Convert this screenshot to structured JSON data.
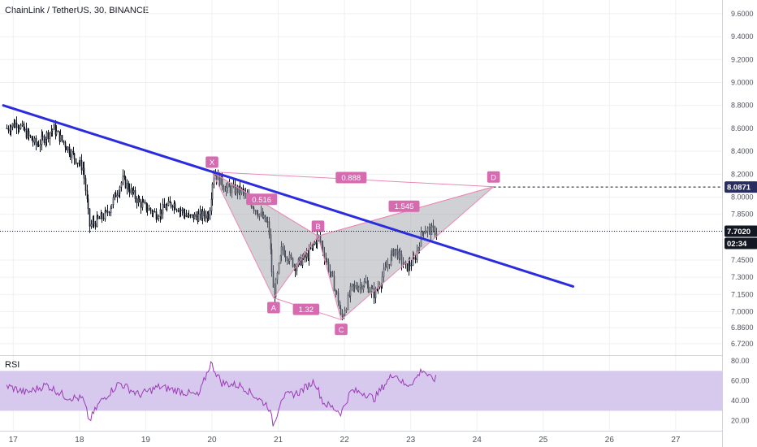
{
  "header": {
    "title": "ChainLink / TetherUS, 30, BINANCE"
  },
  "colors": {
    "candle": "#131722",
    "trendline": "#2b2be0",
    "pattern_fill": "#9598a1",
    "pattern_line": "#e98ab6",
    "pattern_label": "#d66bb0",
    "rsi_band": "#d7c9ee",
    "rsi_line": "#9b3bb5",
    "grid": "#eef0f3",
    "axis_text": "#50535e"
  },
  "chart_data": [
    {
      "type": "candlestick",
      "title": "ChainLink / TetherUS, 30, BINANCE",
      "x_ticks": [
        "17",
        "18",
        "19",
        "20",
        "21",
        "22",
        "23",
        "24",
        "25",
        "26",
        "27"
      ],
      "y_ticks": [
        "9.6000",
        "9.4000",
        "9.2000",
        "9.0000",
        "8.8000",
        "8.6000",
        "8.4000",
        "8.2000",
        "8.0000",
        "7.8500",
        "7.7000",
        "7.4500",
        "7.3000",
        "7.1500",
        "7.0000",
        "6.8600",
        "6.7200"
      ],
      "price_labels": {
        "target": "8.0871",
        "current": "7.7020",
        "countdown": "02:34"
      },
      "anchors": [
        {
          "day": 16.9,
          "price": 8.6
        },
        {
          "day": 17.05,
          "price": 8.65
        },
        {
          "day": 17.35,
          "price": 8.45
        },
        {
          "day": 17.6,
          "price": 8.6
        },
        {
          "day": 17.85,
          "price": 8.4
        },
        {
          "day": 18.05,
          "price": 8.25
        },
        {
          "day": 18.15,
          "price": 7.75
        },
        {
          "day": 18.4,
          "price": 7.85
        },
        {
          "day": 18.65,
          "price": 8.15
        },
        {
          "day": 18.9,
          "price": 7.95
        },
        {
          "day": 19.15,
          "price": 7.85
        },
        {
          "day": 19.4,
          "price": 7.95
        },
        {
          "day": 19.65,
          "price": 7.82
        },
        {
          "day": 19.95,
          "price": 7.85
        },
        {
          "day": 20.02,
          "price": 8.22
        },
        {
          "day": 20.2,
          "price": 8.08
        },
        {
          "day": 20.45,
          "price": 8.05
        },
        {
          "day": 20.62,
          "price": 7.92
        },
        {
          "day": 20.85,
          "price": 7.75
        },
        {
          "day": 20.93,
          "price": 7.12
        },
        {
          "day": 21.05,
          "price": 7.55
        },
        {
          "day": 21.25,
          "price": 7.4
        },
        {
          "day": 21.45,
          "price": 7.5
        },
        {
          "day": 21.6,
          "price": 7.66
        },
        {
          "day": 21.72,
          "price": 7.45
        },
        {
          "day": 21.8,
          "price": 7.3
        },
        {
          "day": 21.9,
          "price": 7.1
        },
        {
          "day": 21.95,
          "price": 6.93
        },
        {
          "day": 22.1,
          "price": 7.2
        },
        {
          "day": 22.3,
          "price": 7.25
        },
        {
          "day": 22.45,
          "price": 7.15
        },
        {
          "day": 22.6,
          "price": 7.35
        },
        {
          "day": 22.75,
          "price": 7.55
        },
        {
          "day": 22.92,
          "price": 7.38
        },
        {
          "day": 23.05,
          "price": 7.45
        },
        {
          "day": 23.18,
          "price": 7.72
        },
        {
          "day": 23.38,
          "price": 7.7
        }
      ],
      "trendline": {
        "start": {
          "day": 16.85,
          "price": 8.8
        },
        "end": {
          "day": 25.45,
          "price": 7.22
        }
      },
      "target_line_price": 8.0871,
      "current_price": 7.702,
      "harmonic_pattern": {
        "points": [
          {
            "label": "X",
            "day": 20.0,
            "price": 8.22
          },
          {
            "label": "A",
            "day": 20.93,
            "price": 7.12
          },
          {
            "label": "B",
            "day": 21.6,
            "price": 7.66
          },
          {
            "label": "C",
            "day": 21.95,
            "price": 6.93
          },
          {
            "label": "D",
            "day": 24.25,
            "price": 8.09
          }
        ],
        "ratios": [
          {
            "label": "0.888",
            "day": 22.1,
            "price": 8.17
          },
          {
            "label": "0.516",
            "day": 20.75,
            "price": 7.98
          },
          {
            "label": "1.545",
            "day": 22.9,
            "price": 7.92
          },
          {
            "label": "1.32",
            "day": 21.42,
            "price": 7.02
          }
        ]
      },
      "ylim": [
        6.62,
        9.72
      ],
      "xlim": [
        16.8,
        27.7
      ]
    },
    {
      "type": "line",
      "title": "RSI",
      "y_ticks": [
        "80.00",
        "60.00",
        "40.00",
        "20.00"
      ],
      "band": [
        30,
        70
      ],
      "ylim": [
        10,
        85
      ],
      "anchors": [
        {
          "day": 16.9,
          "value": 55
        },
        {
          "day": 17.2,
          "value": 48
        },
        {
          "day": 17.5,
          "value": 56
        },
        {
          "day": 17.8,
          "value": 44
        },
        {
          "day": 18.05,
          "value": 42
        },
        {
          "day": 18.15,
          "value": 20
        },
        {
          "day": 18.3,
          "value": 38
        },
        {
          "day": 18.6,
          "value": 58
        },
        {
          "day": 18.9,
          "value": 46
        },
        {
          "day": 19.2,
          "value": 54
        },
        {
          "day": 19.5,
          "value": 50
        },
        {
          "day": 19.8,
          "value": 45
        },
        {
          "day": 19.98,
          "value": 78
        },
        {
          "day": 20.15,
          "value": 58
        },
        {
          "day": 20.45,
          "value": 55
        },
        {
          "day": 20.7,
          "value": 42
        },
        {
          "day": 20.85,
          "value": 35
        },
        {
          "day": 20.93,
          "value": 15
        },
        {
          "day": 21.05,
          "value": 44
        },
        {
          "day": 21.3,
          "value": 48
        },
        {
          "day": 21.55,
          "value": 60
        },
        {
          "day": 21.68,
          "value": 38
        },
        {
          "day": 21.8,
          "value": 34
        },
        {
          "day": 21.95,
          "value": 28
        },
        {
          "day": 22.1,
          "value": 50
        },
        {
          "day": 22.3,
          "value": 48
        },
        {
          "day": 22.45,
          "value": 42
        },
        {
          "day": 22.6,
          "value": 56
        },
        {
          "day": 22.75,
          "value": 68
        },
        {
          "day": 22.92,
          "value": 55
        },
        {
          "day": 23.05,
          "value": 60
        },
        {
          "day": 23.18,
          "value": 72
        },
        {
          "day": 23.3,
          "value": 62
        },
        {
          "day": 23.38,
          "value": 62
        }
      ]
    }
  ]
}
